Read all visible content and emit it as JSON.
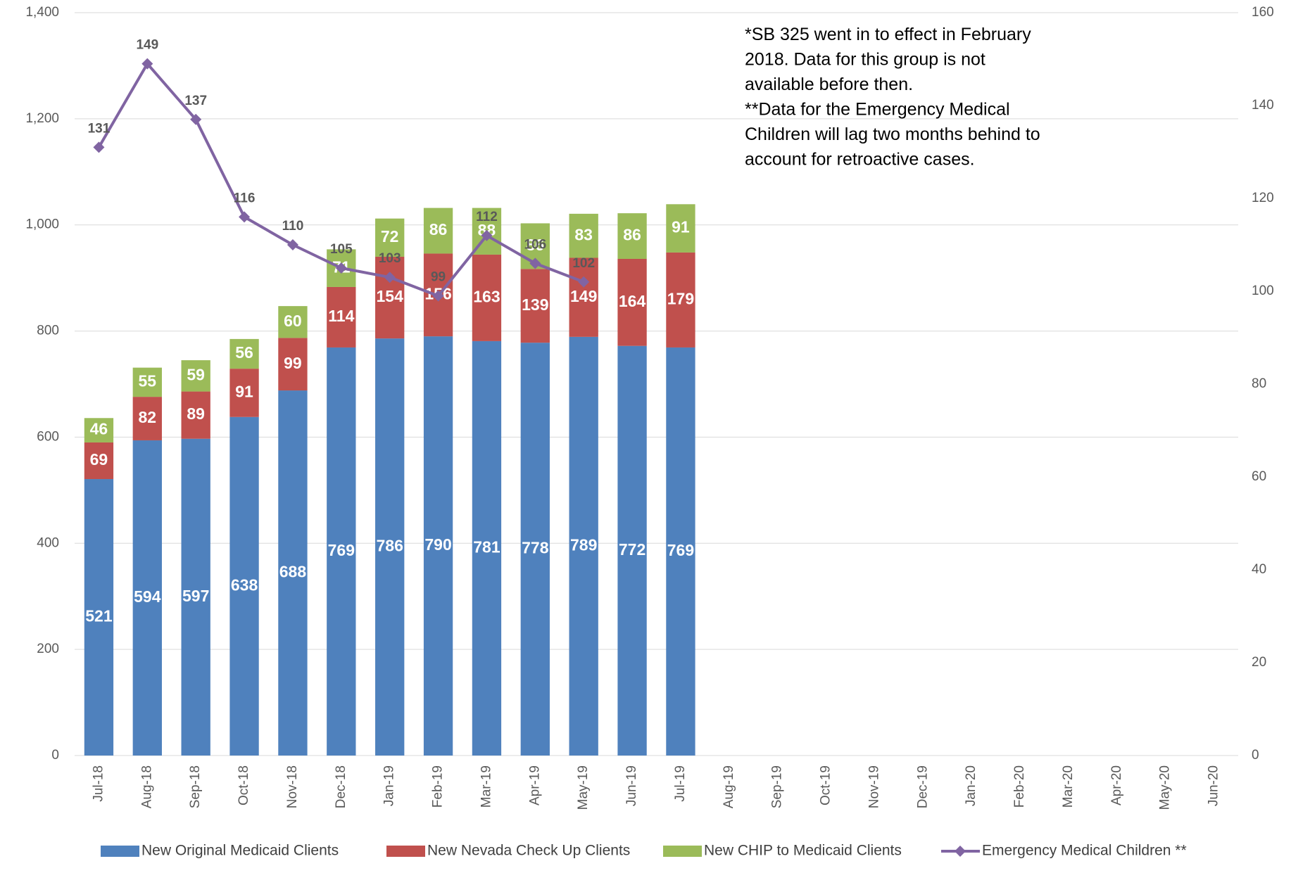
{
  "chart_data": {
    "type": "bar",
    "categories": [
      "Jul-18",
      "Aug-18",
      "Sep-18",
      "Oct-18",
      "Nov-18",
      "Dec-18",
      "Jan-19",
      "Feb-19",
      "Mar-19",
      "Apr-19",
      "May-19",
      "Jun-19",
      "Jul-19",
      "Aug-19",
      "Sep-19",
      "Oct-19",
      "Nov-19",
      "Dec-19",
      "Jan-20",
      "Feb-20",
      "Mar-20",
      "Apr-20",
      "May-20",
      "Jun-20"
    ],
    "series": [
      {
        "name": "New Original  Medicaid Clients",
        "color": "#4f81bd",
        "values": [
          521,
          594,
          597,
          638,
          688,
          769,
          786,
          790,
          781,
          778,
          789,
          772,
          769,
          null,
          null,
          null,
          null,
          null,
          null,
          null,
          null,
          null,
          null,
          null
        ]
      },
      {
        "name": "New Nevada Check Up Clients",
        "color": "#c0504d",
        "values": [
          69,
          82,
          89,
          91,
          99,
          114,
          154,
          156,
          163,
          139,
          149,
          164,
          179,
          null,
          null,
          null,
          null,
          null,
          null,
          null,
          null,
          null,
          null,
          null
        ]
      },
      {
        "name": "New CHIP to Medicaid Clients",
        "color": "#9bbb59",
        "values": [
          46,
          55,
          59,
          56,
          60,
          71,
          72,
          86,
          88,
          86,
          83,
          86,
          91,
          null,
          null,
          null,
          null,
          null,
          null,
          null,
          null,
          null,
          null,
          null
        ]
      },
      {
        "name": "Emergency Medical Children **",
        "color": "#8064a2",
        "type": "line",
        "axis": "y2",
        "values": [
          131,
          149,
          137,
          116,
          110,
          105,
          103,
          99,
          112,
          106,
          102,
          null,
          null,
          null,
          null,
          null,
          null,
          null,
          null,
          null,
          null,
          null,
          null,
          null
        ]
      }
    ],
    "stacked": true,
    "ylim": [
      0,
      1400
    ],
    "yticks": [
      0,
      200,
      400,
      600,
      800,
      {
        "value": 1000,
        "label": "1,000"
      },
      {
        "value": 1200,
        "label": "1,200"
      },
      {
        "value": 1400,
        "label": "1,400"
      }
    ],
    "y2lim": [
      0,
      160
    ],
    "y2ticks": [
      0,
      20,
      40,
      60,
      80,
      100,
      120,
      140,
      160
    ],
    "grid": true,
    "legend": "bottom",
    "annotation": [
      "*SB 325 went in to effect in February",
      "2018. Data for this group is not",
      "available before then.",
      "**Data for the Emergency Medical",
      "Children will lag two months behind to",
      "account for retroactive cases."
    ]
  }
}
